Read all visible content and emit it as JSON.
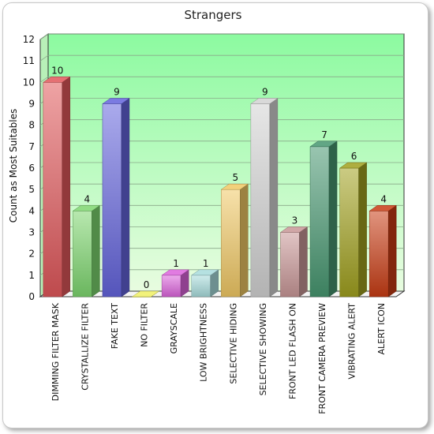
{
  "chart_data": {
    "type": "bar",
    "title": "Strangers",
    "xlabel": "",
    "ylabel": "Count as Most Suitables",
    "ylim": [
      0,
      12
    ],
    "yticks": [
      0,
      1,
      2,
      3,
      4,
      5,
      6,
      7,
      8,
      9,
      10,
      11,
      12
    ],
    "grid": true,
    "categories": [
      "DIMMING FILTER MASK",
      "CRYSTALLIZE FILTER",
      "FAKE TEXT",
      "NO FILTER",
      "GRAYSCALE",
      "LOW BRIGHTNESS",
      "SELECTIVE HIDING",
      "SELECTIVE SHOWING",
      "FRONT LED FLASH ON",
      "FRONT CAMERA PREVIEW",
      "VIBRATING ALERT",
      "ALERT ICON"
    ],
    "values": [
      10,
      4,
      9,
      0,
      1,
      1,
      5,
      9,
      3,
      7,
      6,
      4
    ],
    "colors": [
      "#e0575a",
      "#7dd66e",
      "#6464dc",
      "#f0f064",
      "#dc64dc",
      "#a8dcdc",
      "#f0c864",
      "#d2d2d2",
      "#c89696",
      "#469670",
      "#a0a01e",
      "#c83c14"
    ],
    "plot_background": [
      "#e8fce0",
      "#8cfaa0"
    ]
  }
}
